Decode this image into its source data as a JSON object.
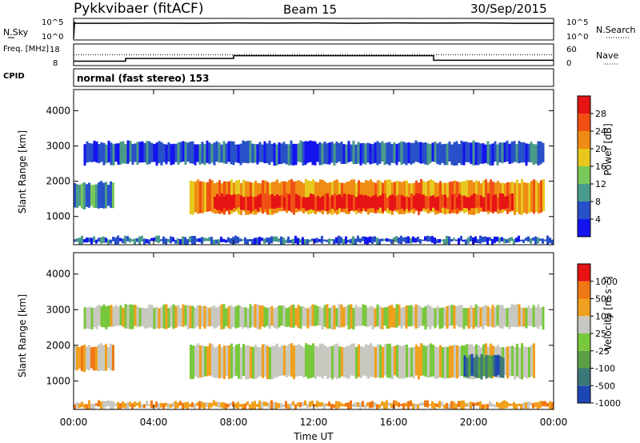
{
  "header": {
    "station": "Pykkvibaer (fitACF)",
    "beam": "Beam 15",
    "date": "30/Sep/2015"
  },
  "chart_data": [
    {
      "type": "line",
      "panel": "noise",
      "left_label": "N.Sky",
      "right_label": "N.Search",
      "left_ticks": [
        "10^5",
        "10^0"
      ],
      "right_ticks": [
        "10^5",
        "10^0"
      ],
      "x_hours": [
        0,
        0.05,
        0.1,
        2,
        4,
        6,
        8,
        10,
        12,
        14,
        16,
        18,
        20,
        22,
        24
      ],
      "n_sky_log10": [
        0,
        4.5,
        4.3,
        4.3,
        4.35,
        4.3,
        4.4,
        4.35,
        4.4,
        4.3,
        4.4,
        4.35,
        4.4,
        4.3,
        4.3
      ]
    },
    {
      "type": "line",
      "panel": "frequency",
      "left_label": "Freq. [MHz]",
      "right_label": "Nave",
      "cpid_label": "CPID",
      "left_ticks": [
        "18",
        "8"
      ],
      "right_ticks": [
        "60",
        "0"
      ],
      "freq_steps": [
        {
          "from": 0,
          "to": 2.6,
          "mhz": 9.5
        },
        {
          "from": 2.6,
          "to": 8,
          "mhz": 11
        },
        {
          "from": 8,
          "to": 18,
          "mhz": 12.5
        },
        {
          "from": 18,
          "to": 24,
          "mhz": 10
        }
      ],
      "nave_level": 30
    },
    {
      "type": "heatmap",
      "panel": "power",
      "mode_text": "normal (fast stereo) 153",
      "ylabel": "Slant Range [km]",
      "yticks": [
        "1000",
        "2000",
        "3000",
        "4000"
      ],
      "ytick_values": [
        1000,
        2000,
        3000,
        4000
      ],
      "ylim": [
        200,
        4600
      ],
      "colorbar_label": "Power [dB]",
      "colorbar_ticks": [
        "4",
        "8",
        "12",
        "16",
        "20",
        "24",
        "28"
      ],
      "colorbar_colors": [
        "#1414f0",
        "#2850c8",
        "#4a9a8a",
        "#78c85a",
        "#e6c81e",
        "#f08c14",
        "#f05014",
        "#e61414"
      ],
      "bands": [
        {
          "x0": 0,
          "x1": 2.0,
          "r0": 1250,
          "r1": 1950,
          "level": 2
        },
        {
          "x0": 5.8,
          "x1": 23.5,
          "r0": 1100,
          "r1": 2000,
          "level": 5
        },
        {
          "x0": 7.0,
          "x1": 22.0,
          "r0": 1200,
          "r1": 1600,
          "level": 7
        },
        {
          "x0": 0.5,
          "x1": 23.5,
          "r0": 2500,
          "r1": 3100,
          "level": 1
        },
        {
          "x0": 0,
          "x1": 24,
          "r0": 250,
          "r1": 400,
          "level": 1
        }
      ]
    },
    {
      "type": "heatmap",
      "panel": "velocity",
      "ylabel": "Slant Range [km]",
      "yticks": [
        "1000",
        "2000",
        "3000",
        "4000"
      ],
      "ytick_values": [
        1000,
        2000,
        3000,
        4000
      ],
      "ylim": [
        200,
        4600
      ],
      "xlabel": "Time UT",
      "xticks": [
        "00:00",
        "04:00",
        "08:00",
        "12:00",
        "16:00",
        "20:00",
        "00:00"
      ],
      "xtick_hours": [
        0,
        4,
        8,
        12,
        16,
        20,
        24
      ],
      "colorbar_label": "Velocity [m s⁻¹]",
      "colorbar_ticks": [
        "1000",
        "500",
        "100",
        "25",
        "-25",
        "-100",
        "-500",
        "-1000"
      ],
      "colorbar_colors": [
        "#1e46b4",
        "#3c7878",
        "#5aa046",
        "#78c83c",
        "#c8c8c0",
        "#f0a01e",
        "#f07814",
        "#e61414"
      ],
      "bands": [
        {
          "x0": 0,
          "x1": 2.0,
          "r0": 1300,
          "r1": 2000,
          "level": 5
        },
        {
          "x0": 5.8,
          "x1": 23.0,
          "r0": 1100,
          "r1": 2000,
          "level": 4
        },
        {
          "x0": 19.5,
          "x1": 21.5,
          "r0": 1100,
          "r1": 1700,
          "level": 1
        },
        {
          "x0": 0.5,
          "x1": 23.5,
          "r0": 2500,
          "r1": 3100,
          "level": 4
        },
        {
          "x0": 0,
          "x1": 24,
          "r0": 250,
          "r1": 400,
          "level": 5
        }
      ]
    }
  ]
}
